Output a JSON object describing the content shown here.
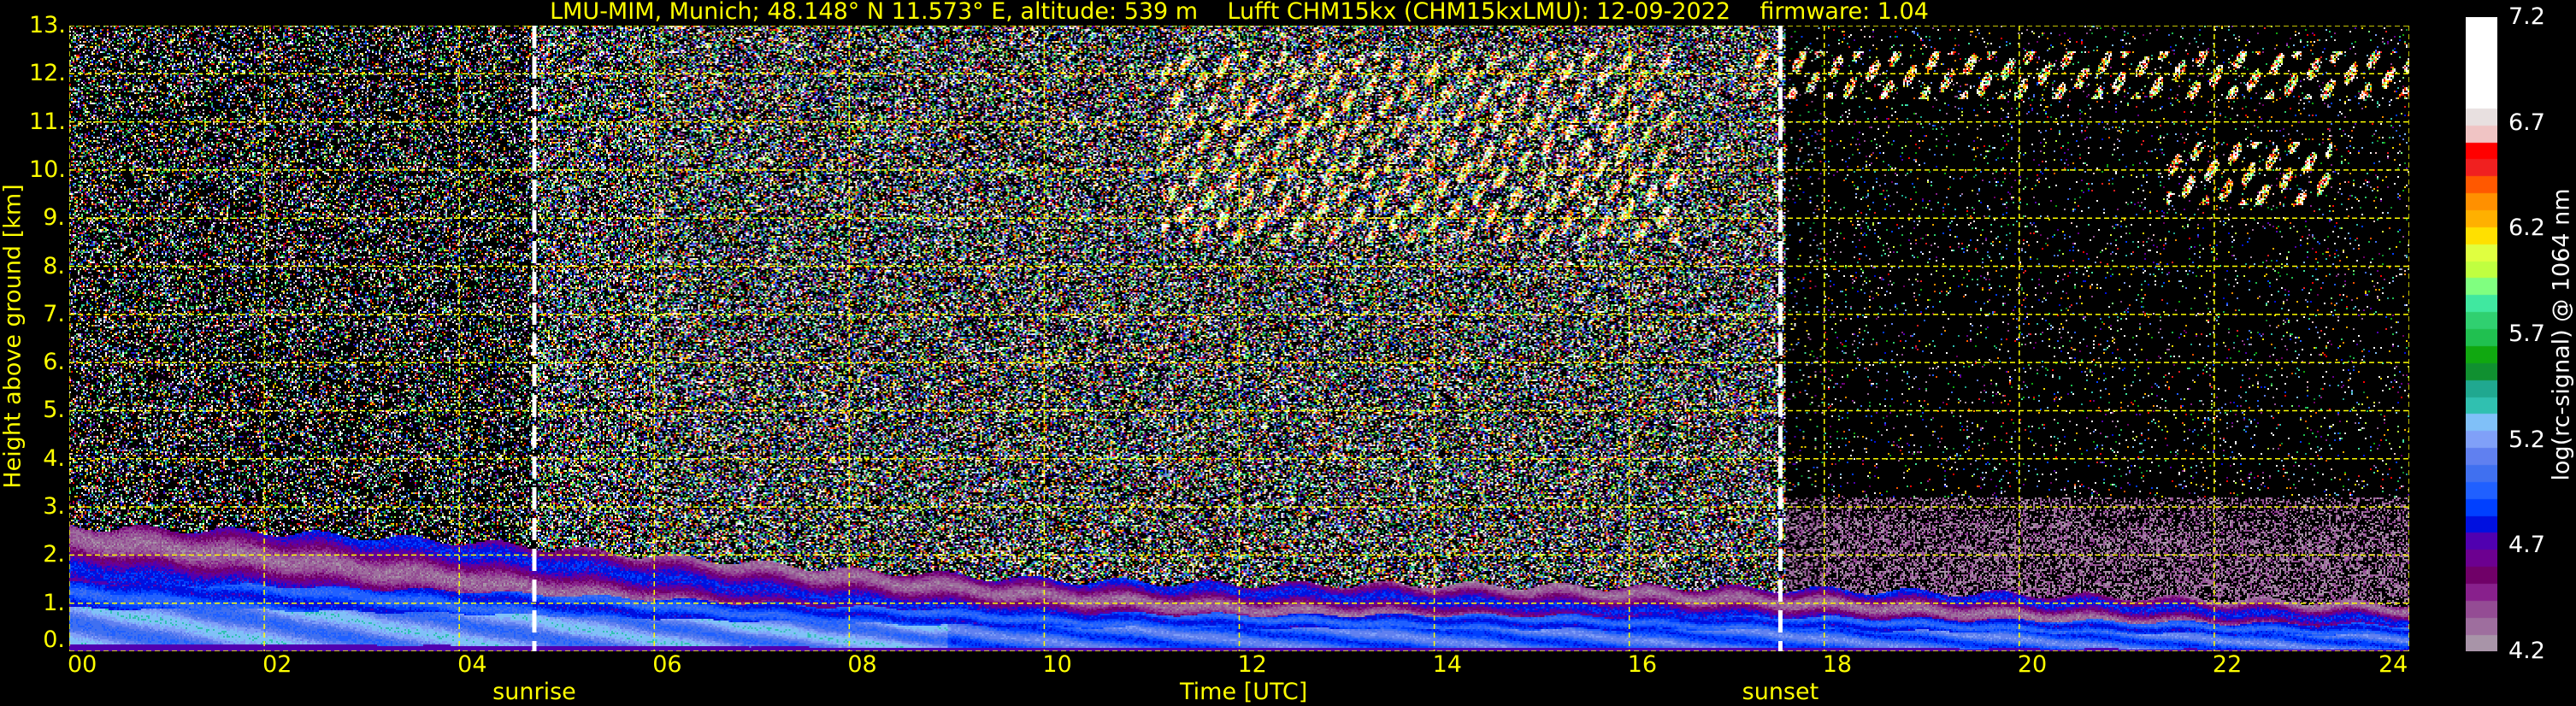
{
  "chart_data": {
    "type": "heatmap",
    "title": "LMU-MIM, Munich; 48.148° N 11.573° E, altitude: 539 m    Lufft CHM15kx (CHM15kxLMU): 12-09-2022    firmware: 1.04",
    "xlabel": "Time [UTC]",
    "ylabel": "Height above ground [km]",
    "xlim": [
      0,
      24
    ],
    "ylim": [
      0,
      13
    ],
    "x_ticks": [
      "00",
      "02",
      "04",
      "06",
      "08",
      "10",
      "12",
      "14",
      "16",
      "18",
      "20",
      "22",
      "24"
    ],
    "x_tick_values": [
      0,
      2,
      4,
      6,
      8,
      10,
      12,
      14,
      16,
      18,
      20,
      22,
      24
    ],
    "y_ticks": [
      "0.",
      "1.",
      "2.",
      "3.",
      "4.",
      "5.",
      "6.",
      "7.",
      "8.",
      "9.",
      "10.",
      "11.",
      "12.",
      "13."
    ],
    "y_tick_values": [
      0,
      1,
      2,
      3,
      4,
      5,
      6,
      7,
      8,
      9,
      10,
      11,
      12,
      13
    ],
    "grid": true,
    "grid_color": "#ffff00",
    "annotations": [
      {
        "label": "sunrise",
        "x": 4.77
      },
      {
        "label": "sunset",
        "x": 17.55
      }
    ],
    "colorbar": {
      "label": "log(rc-signal) @ 1064 nm",
      "range": [
        4.2,
        7.2
      ],
      "ticks": [
        "4.2",
        "4.7",
        "5.2",
        "5.7",
        "6.2",
        "6.7",
        "7.2"
      ],
      "tick_values": [
        4.2,
        4.7,
        5.2,
        5.7,
        6.2,
        6.7,
        7.2
      ],
      "colors": [
        "#a894a8",
        "#9e6e9e",
        "#944c94",
        "#88208c",
        "#700068",
        "#6c0090",
        "#5000b0",
        "#0010e0",
        "#0040ff",
        "#2060ff",
        "#4070f0",
        "#6080f0",
        "#80a0f8",
        "#80c0f8",
        "#30c0b0",
        "#20a890",
        "#109030",
        "#10a810",
        "#20c050",
        "#30d070",
        "#40e8a0",
        "#80ff80",
        "#c0ff40",
        "#e0ff40",
        "#ffe000",
        "#ffb000",
        "#ff9000",
        "#ff5800",
        "#f02020",
        "#ff0000",
        "#f0c4c4",
        "#e8e0e0",
        "#ffffff"
      ]
    },
    "features": {
      "boundary_layer_top_km": [
        [
          0,
          2.6
        ],
        [
          2,
          2.5
        ],
        [
          4,
          2.3
        ],
        [
          6,
          2.0
        ],
        [
          8,
          1.7
        ],
        [
          10,
          1.5
        ],
        [
          12,
          1.4
        ],
        [
          14,
          1.4
        ],
        [
          16,
          1.35
        ],
        [
          18,
          1.3
        ],
        [
          20,
          1.2
        ],
        [
          22,
          1.1
        ],
        [
          24,
          1.0
        ]
      ],
      "cirrus_clouds": [
        {
          "time_range": [
            11.2,
            16.5
          ],
          "height_range_km": [
            8.5,
            12.5
          ]
        },
        {
          "time_range": [
            17.2,
            24
          ],
          "height_range_km": [
            11.5,
            12.5
          ]
        },
        {
          "time_range": [
            21.5,
            23.2
          ],
          "height_range_km": [
            9.3,
            10.6
          ]
        }
      ]
    }
  }
}
